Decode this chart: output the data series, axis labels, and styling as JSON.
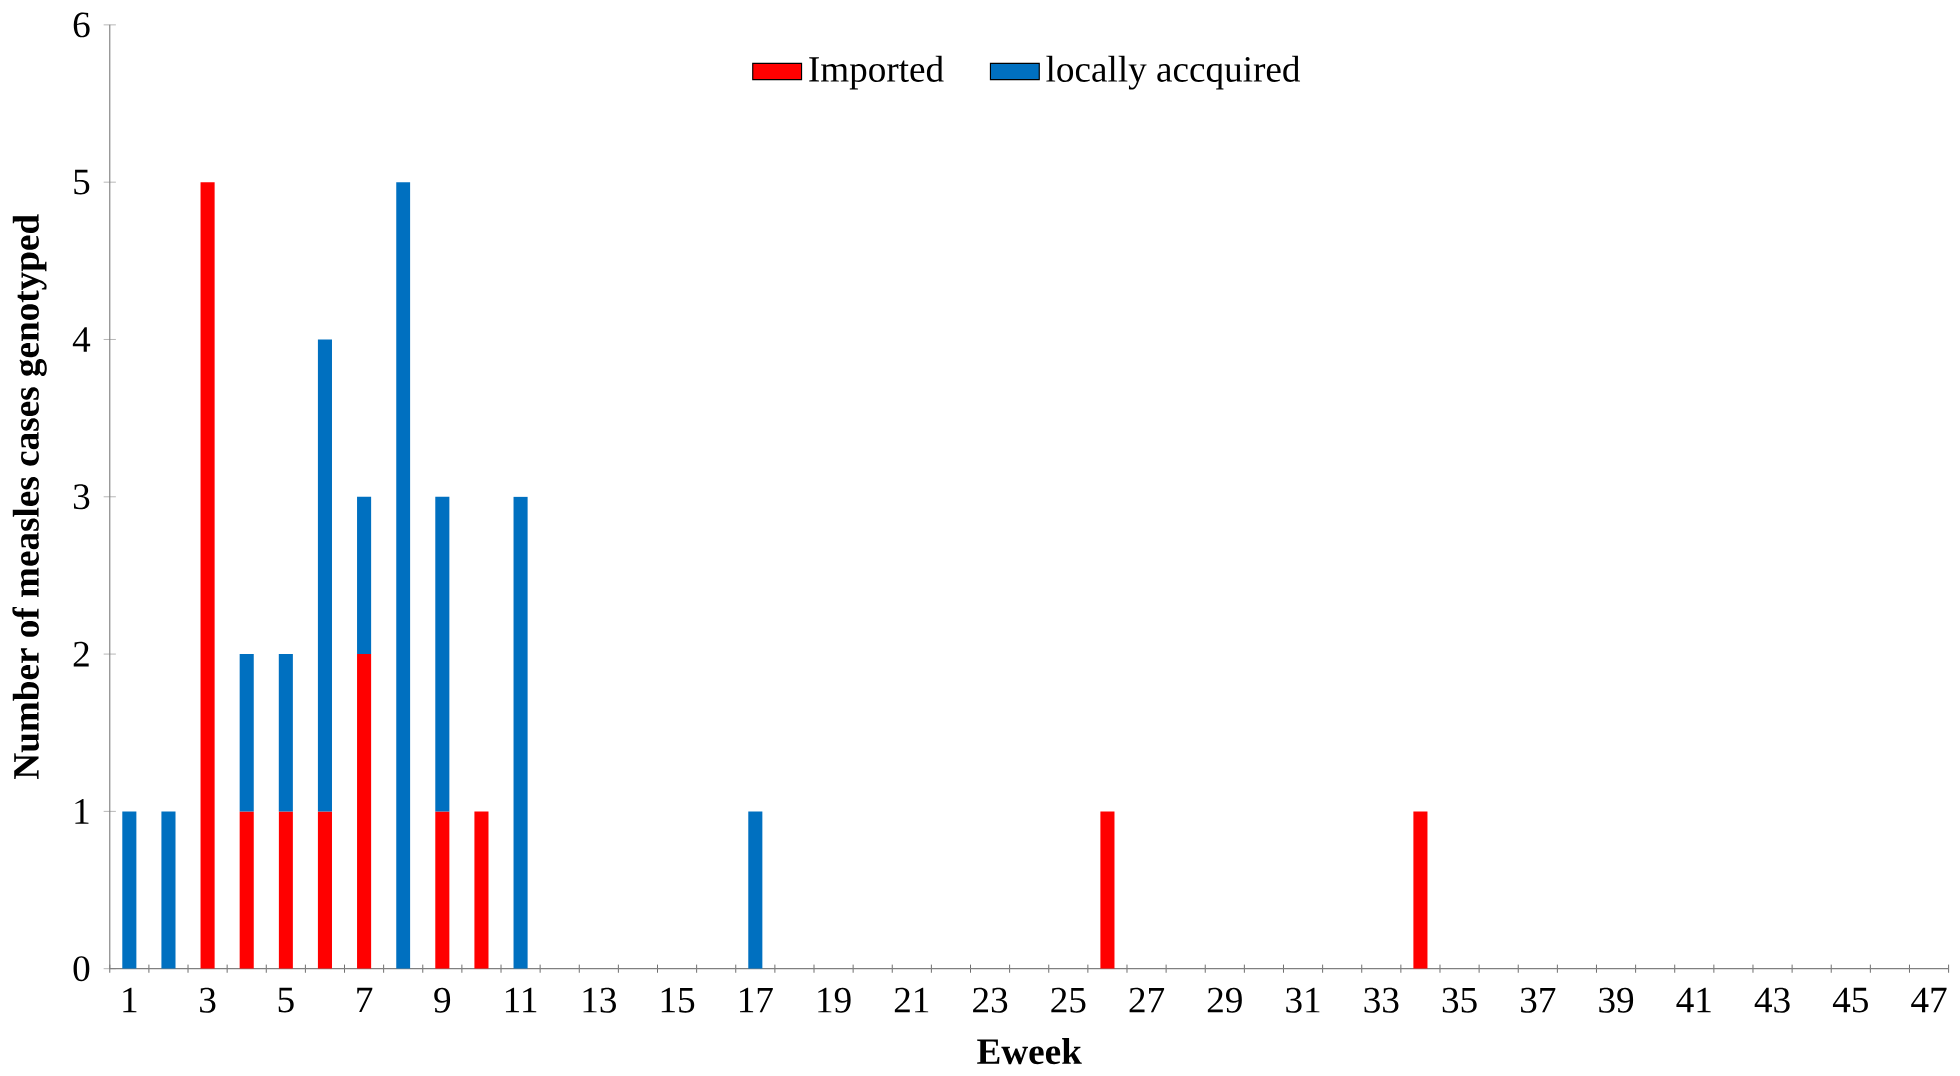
{
  "chart_data": {
    "type": "bar",
    "stacked": true,
    "xlabel": "Eweek",
    "ylabel": "Number of measles cases genotyped",
    "categories": [
      "1",
      null,
      "3",
      null,
      "5",
      null,
      "7",
      null,
      "9",
      null,
      "11",
      null,
      "13",
      null,
      "15",
      null,
      "17",
      null,
      "19",
      null,
      "21",
      null,
      "23",
      null,
      "25",
      null,
      "27",
      null,
      "29",
      null,
      "31",
      null,
      "33",
      null,
      "35",
      null,
      "37",
      null,
      "39",
      null,
      "41",
      null,
      "43",
      null,
      "45",
      null,
      "47"
    ],
    "series": [
      {
        "name": "Imported",
        "color": "#ff0000",
        "values": [
          null,
          null,
          5,
          1,
          1,
          1,
          2,
          null,
          1,
          1,
          null,
          null,
          null,
          null,
          null,
          null,
          null,
          null,
          null,
          null,
          null,
          null,
          null,
          null,
          null,
          1,
          null,
          null,
          null,
          null,
          null,
          null,
          null,
          1,
          null,
          null,
          null,
          null,
          null,
          null,
          null,
          null,
          null,
          null,
          null,
          null,
          null
        ]
      },
      {
        "name": "locally accquired",
        "color": "#0070c0",
        "values": [
          1,
          1,
          null,
          1,
          1,
          3,
          1,
          5,
          2,
          null,
          3,
          null,
          null,
          null,
          null,
          null,
          1,
          null,
          null,
          null,
          null,
          null,
          null,
          null,
          null,
          null,
          null,
          null,
          null,
          null,
          null,
          null,
          null,
          null,
          null,
          null,
          null,
          null,
          null,
          null,
          null,
          null,
          null,
          null,
          null,
          null,
          null
        ]
      }
    ],
    "ylim": [
      0,
      6
    ],
    "yticks": [
      0,
      1,
      2,
      3,
      4,
      5,
      6
    ],
    "legend": "top"
  }
}
